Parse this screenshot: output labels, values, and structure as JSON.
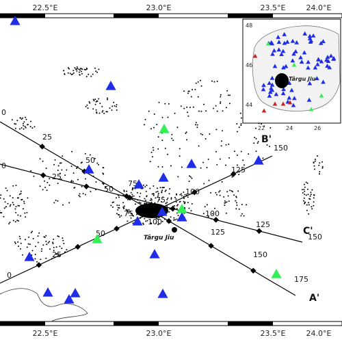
{
  "map": {
    "top_ticks": [
      "22.5°E",
      "23.0°E",
      "23.5°E",
      "24.0°E"
    ],
    "bottom_ticks": [
      "22.5°E",
      "23.0°E",
      "23.5°E",
      "24.0°E"
    ],
    "city_label": "Târgu Jiu",
    "profiles": [
      {
        "start": "",
        "end": "A'",
        "distance_labels": [
          "0",
          "25",
          "50",
          "75",
          "100",
          "125",
          "150",
          "175"
        ]
      },
      {
        "start": "",
        "end": "C'",
        "distance_labels": [
          "0",
          "25",
          "50",
          "75",
          "100",
          "125",
          "150"
        ]
      },
      {
        "start": "",
        "end": "B'",
        "distance_labels": [
          "0",
          "25",
          "50",
          "75",
          "100",
          "125",
          "150"
        ]
      }
    ],
    "colors": {
      "station_blue": "#1f2ee6",
      "station_green": "#33ee55",
      "station_red": "#cc2222",
      "event_black": "#000000",
      "inset_land": "#f2f2f2"
    },
    "symbols": [
      "triangle-station",
      "diamond-profile-marker",
      "dot-earthquake"
    ]
  },
  "inset": {
    "lat_ticks": [
      "48",
      "46",
      "44"
    ],
    "lon_ticks": [
      "22",
      "24",
      "26"
    ],
    "city_label": "Târgu Jiu"
  }
}
